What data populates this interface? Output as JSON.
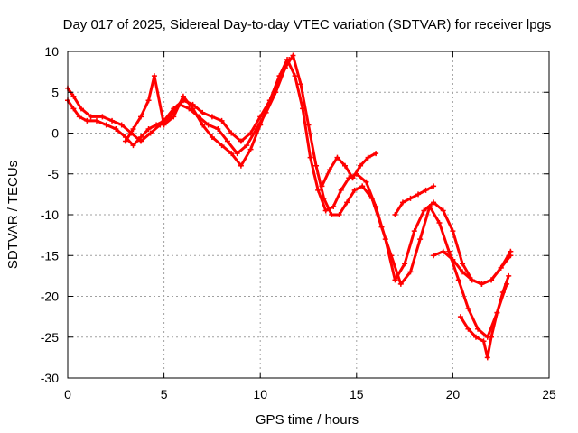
{
  "chart_data": {
    "type": "scatter",
    "title": "Day 017 of 2025, Sidereal Day-to-day VTEC variation (SDTVAR) for receiver lpgs",
    "xlabel": "GPS time / hours",
    "ylabel": "SDTVAR / TECUs",
    "xlim": [
      0,
      25
    ],
    "ylim": [
      -30,
      10
    ],
    "xticks": [
      0,
      5,
      10,
      15,
      20,
      25
    ],
    "yticks": [
      -30,
      -25,
      -20,
      -15,
      -10,
      -5,
      0,
      5,
      10
    ],
    "grid": true,
    "legend": "none",
    "marker": "plus",
    "color": "#ff0000",
    "series": [
      {
        "x": [
          0.0,
          0.3,
          0.6,
          1.0,
          1.5,
          2.0,
          2.5,
          3.0,
          3.4,
          3.8,
          4.2,
          4.6,
          5.0,
          5.5,
          6.0,
          6.5,
          7.0,
          7.5,
          8.0,
          8.5,
          9.0,
          9.5,
          10.0,
          10.5,
          11.0,
          11.4,
          11.8,
          12.2,
          12.6,
          13.0,
          13.4,
          13.8,
          14.2,
          14.6,
          15.0,
          15.5,
          16.0,
          16.5,
          17.0,
          17.5,
          18.0,
          18.5,
          19.0,
          19.5,
          20.0,
          20.5,
          21.0,
          21.5,
          22.0,
          22.5,
          23.0
        ],
        "y": [
          4.0,
          3.0,
          2.0,
          1.5,
          1.5,
          1.0,
          0.5,
          -0.5,
          -1.5,
          -0.5,
          0.5,
          1.0,
          1.5,
          3.0,
          4.0,
          3.5,
          2.5,
          2.0,
          1.5,
          0.0,
          -1.0,
          0.0,
          2.0,
          4.0,
          7.0,
          9.0,
          7.0,
          3.0,
          -3.0,
          -7.0,
          -9.5,
          -9.0,
          -7.0,
          -5.5,
          -5.0,
          -6.0,
          -9.0,
          -13.0,
          -18.0,
          -16.0,
          -12.0,
          -9.5,
          -8.5,
          -9.5,
          -12.0,
          -16.0,
          -18.0,
          -18.5,
          -18.0,
          -16.5,
          -15.0
        ]
      },
      {
        "x": [
          0.0,
          0.3,
          0.7,
          1.2,
          1.8,
          2.3,
          2.8,
          3.3,
          3.8,
          4.3,
          4.8,
          5.3,
          5.8,
          6.3,
          6.8,
          7.3,
          7.8,
          8.3,
          8.8,
          9.3,
          9.8,
          10.3,
          10.8,
          11.3,
          11.7,
          12.1,
          12.5,
          12.9,
          13.3,
          13.7,
          14.1,
          14.5,
          14.9,
          15.3,
          15.8,
          16.3,
          16.8,
          17.3,
          17.8,
          18.3,
          18.8,
          19.3,
          19.8,
          20.3,
          20.8,
          21.3,
          21.8,
          22.3,
          22.8
        ],
        "y": [
          5.5,
          4.5,
          3.0,
          2.0,
          2.0,
          1.5,
          1.0,
          0.0,
          -1.0,
          0.0,
          1.0,
          2.0,
          3.5,
          3.0,
          2.0,
          1.0,
          0.5,
          -1.0,
          -2.5,
          -1.5,
          0.5,
          2.5,
          5.0,
          8.0,
          9.5,
          6.0,
          1.0,
          -4.0,
          -8.0,
          -10.0,
          -10.0,
          -8.5,
          -7.0,
          -6.5,
          -8.0,
          -11.5,
          -15.0,
          -18.5,
          -17.0,
          -13.0,
          -9.0,
          -11.0,
          -14.5,
          -18.0,
          -21.5,
          -24.0,
          -25.0,
          -22.0,
          -18.5
        ]
      },
      {
        "x": [
          3.0,
          3.4,
          3.8,
          4.2,
          4.5,
          5.0,
          5.5,
          6.0,
          6.5,
          7.0,
          7.5,
          8.0,
          8.5,
          9.0,
          9.5,
          10.0,
          10.5,
          11.0,
          11.5
        ],
        "y": [
          -1.0,
          0.5,
          2.0,
          4.0,
          7.0,
          1.0,
          2.0,
          4.5,
          3.0,
          1.0,
          -0.5,
          -1.5,
          -2.5,
          -4.0,
          -2.0,
          1.0,
          4.0,
          7.0,
          9.0
        ]
      },
      {
        "x": [
          13.2,
          13.6,
          14.0,
          14.4,
          14.8,
          15.2,
          15.6,
          16.0
        ],
        "y": [
          -6.5,
          -4.5,
          -3.0,
          -4.0,
          -5.5,
          -4.0,
          -3.0,
          -2.5
        ]
      },
      {
        "x": [
          17.0,
          17.4,
          17.8,
          18.2,
          18.6,
          19.0
        ],
        "y": [
          -10.0,
          -8.5,
          -8.0,
          -7.5,
          -7.0,
          -6.5
        ]
      },
      {
        "x": [
          19.0,
          19.5,
          20.0,
          20.5,
          21.0,
          21.5,
          22.0,
          22.5,
          23.0
        ],
        "y": [
          -15.0,
          -14.5,
          -15.5,
          -17.0,
          -18.0,
          -18.5,
          -18.0,
          -16.5,
          -14.5
        ]
      },
      {
        "x": [
          20.4,
          20.8,
          21.2,
          21.6,
          21.8,
          22.0,
          22.3,
          22.6,
          22.9
        ],
        "y": [
          -22.5,
          -24.0,
          -25.0,
          -25.5,
          -27.5,
          -25.0,
          -22.0,
          -19.5,
          -17.5
        ]
      }
    ]
  }
}
